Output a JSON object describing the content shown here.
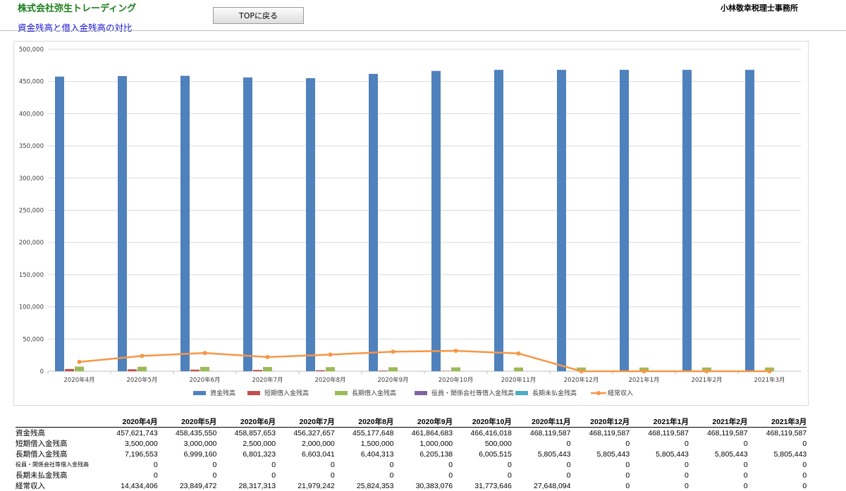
{
  "header": {
    "company": "株式会社弥生トレーディング",
    "subtitle": "資金残高と借入金残高の対比",
    "top_button": "TOPに戻る",
    "office": "小林敬幸税理士事務所"
  },
  "colors": {
    "series1": "#4f81bd",
    "series2": "#c0504d",
    "series3": "#9bbb59",
    "series4": "#8064a2",
    "series5": "#4bacc6",
    "series6": "#f79646"
  },
  "chart_data": {
    "type": "bar",
    "categories": [
      "2020年4月",
      "2020年5月",
      "2020年6月",
      "2020年7月",
      "2020年8月",
      "2020年9月",
      "2020年10月",
      "2020年11月",
      "2020年12月",
      "2021年1月",
      "2021年2月",
      "2021年3月"
    ],
    "ylim": [
      0,
      500000
    ],
    "ytick_labels": [
      "0",
      "50,000",
      "100,000",
      "150,000",
      "200,000",
      "250,000",
      "300,000",
      "350,000",
      "400,000",
      "450,000",
      "500,000"
    ],
    "grid": true,
    "legend_position": "bottom",
    "series": [
      {
        "name": "資金残高",
        "type": "bar",
        "values": [
          457622,
          458436,
          458858,
          456328,
          455178,
          461865,
          466416,
          468120,
          468120,
          468120,
          468120,
          468120
        ]
      },
      {
        "name": "短期借入金残高",
        "type": "bar",
        "values": [
          3500,
          3000,
          2500,
          2000,
          1500,
          1000,
          500,
          0,
          0,
          0,
          0,
          0
        ]
      },
      {
        "name": "長期借入金残高",
        "type": "bar",
        "values": [
          7197,
          6999,
          6801,
          6603,
          6404,
          6205,
          6006,
          5805,
          5805,
          5805,
          5805,
          5805
        ]
      },
      {
        "name": "役員・関係会社等借入金残高",
        "type": "bar",
        "values": [
          0,
          0,
          0,
          0,
          0,
          0,
          0,
          0,
          0,
          0,
          0,
          0
        ]
      },
      {
        "name": "長期未払金残高",
        "type": "bar",
        "values": [
          0,
          0,
          0,
          0,
          0,
          0,
          0,
          0,
          0,
          0,
          0,
          0
        ]
      },
      {
        "name": "経常収入",
        "type": "line",
        "values": [
          14434,
          23849,
          28317,
          21979,
          25824,
          30383,
          31774,
          27648,
          0,
          0,
          0,
          0
        ]
      }
    ]
  },
  "table": {
    "headers": [
      "2020年4月",
      "2020年5月",
      "2020年6月",
      "2020年7月",
      "2020年8月",
      "2020年9月",
      "2020年10月",
      "2020年11月",
      "2020年12月",
      "2021年1月",
      "2021年2月",
      "2021年3月"
    ],
    "rows": [
      {
        "label": "資金残高",
        "values": [
          "457,621,743",
          "458,435,550",
          "458,857,653",
          "456,327,657",
          "455,177,648",
          "461,864,683",
          "466,416,018",
          "468,119,587",
          "468,119,587",
          "468,119,587",
          "468,119,587",
          "468,119,587"
        ]
      },
      {
        "label": "短期借入金残高",
        "values": [
          "3,500,000",
          "3,000,000",
          "2,500,000",
          "2,000,000",
          "1,500,000",
          "1,000,000",
          "500,000",
          "0",
          "0",
          "0",
          "0",
          "0"
        ]
      },
      {
        "label": "長期借入金残高",
        "values": [
          "7,196,553",
          "6,999,160",
          "6,801,323",
          "6,603,041",
          "6,404,313",
          "6,205,138",
          "6,005,515",
          "5,805,443",
          "5,805,443",
          "5,805,443",
          "5,805,443",
          "5,805,443"
        ]
      },
      {
        "label": "役員・関係会社等借入金残高",
        "small": true,
        "values": [
          "0",
          "0",
          "0",
          "0",
          "0",
          "0",
          "0",
          "0",
          "0",
          "0",
          "0",
          "0"
        ]
      },
      {
        "label": "長期未払金残高",
        "values": [
          "0",
          "0",
          "0",
          "0",
          "0",
          "0",
          "0",
          "0",
          "0",
          "0",
          "0",
          "0"
        ]
      },
      {
        "label": "経常収入",
        "values": [
          "14,434,406",
          "23,849,472",
          "28,317,313",
          "21,979,242",
          "25,824,353",
          "30,383,076",
          "31,773,646",
          "27,648,094",
          "0",
          "0",
          "0",
          "0"
        ]
      }
    ]
  }
}
